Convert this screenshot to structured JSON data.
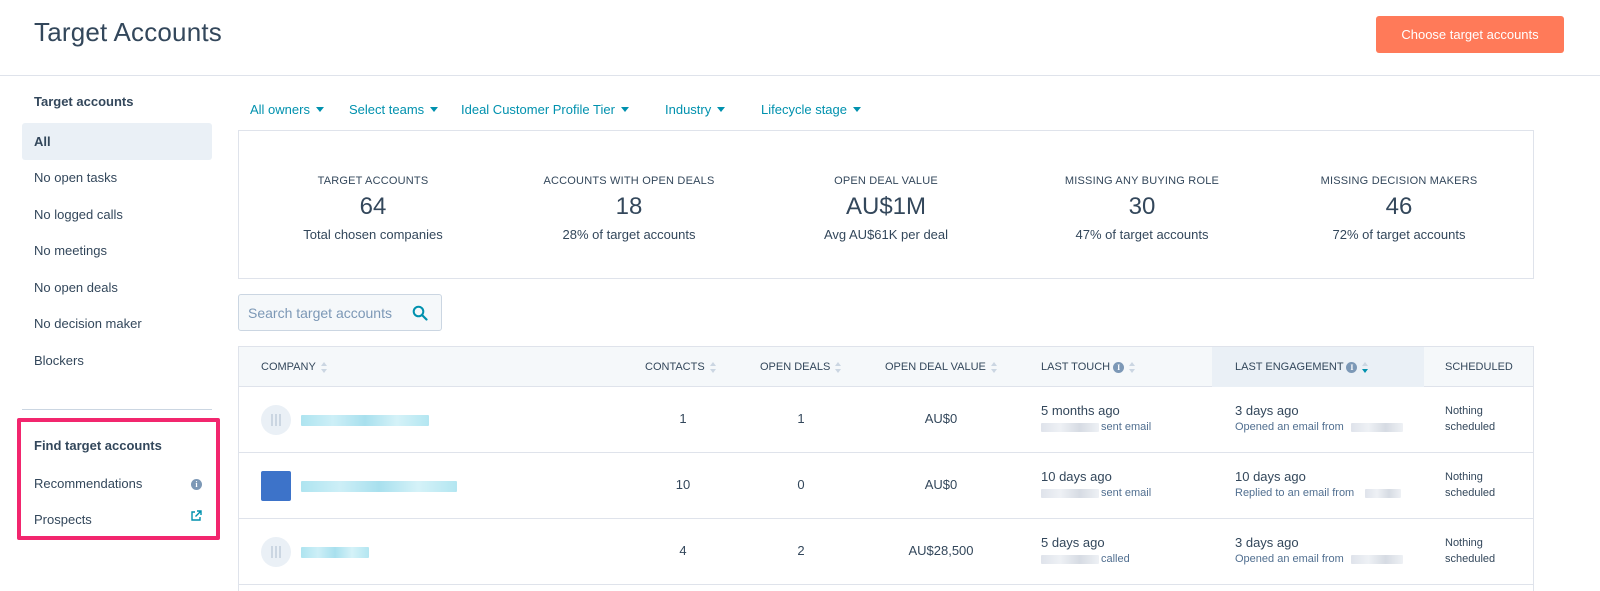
{
  "header": {
    "title": "Target Accounts",
    "cta_label": "Choose target accounts"
  },
  "sidebar": {
    "heading": "Target accounts",
    "items": [
      {
        "label": "All",
        "active": true
      },
      {
        "label": "No open tasks"
      },
      {
        "label": "No logged calls"
      },
      {
        "label": "No meetings"
      },
      {
        "label": "No open deals"
      },
      {
        "label": "No decision maker"
      },
      {
        "label": "Blockers"
      }
    ],
    "find": {
      "heading": "Find target accounts",
      "items": [
        {
          "label": "Recommendations",
          "icon": "info-icon"
        },
        {
          "label": "Prospects",
          "icon": "external-link-icon"
        }
      ]
    }
  },
  "filters": [
    "All owners",
    "Select teams",
    "Ideal Customer Profile Tier",
    "Industry",
    "Lifecycle stage"
  ],
  "stats": [
    {
      "label": "Target accounts",
      "value": "64",
      "sub": "Total chosen companies"
    },
    {
      "label": "Accounts with open deals",
      "value": "18",
      "sub": "28% of target accounts"
    },
    {
      "label": "Open deal value",
      "value": "AU$1M",
      "sub": "Avg AU$61K per deal"
    },
    {
      "label": "Missing any buying role",
      "value": "30",
      "sub": "47% of target accounts"
    },
    {
      "label": "Missing decision makers",
      "value": "46",
      "sub": "72% of target accounts"
    }
  ],
  "search": {
    "placeholder": "Search target accounts"
  },
  "table": {
    "columns": [
      "Company",
      "Contacts",
      "Open deals",
      "Open deal value",
      "Last touch",
      "Last engagement",
      "Scheduled"
    ],
    "sorted_column": "Last engagement",
    "rows": [
      {
        "contacts": "1",
        "open_deals": "1",
        "open_deal_value": "AU$0",
        "last_touch": "5 months ago",
        "last_touch_sub": "sent email",
        "last_engagement": "3 days ago",
        "last_engagement_sub": "Opened an email from",
        "scheduled": "Nothing scheduled"
      },
      {
        "contacts": "10",
        "open_deals": "0",
        "open_deal_value": "AU$0",
        "last_touch": "10 days ago",
        "last_touch_sub": "sent email",
        "last_engagement": "10 days ago",
        "last_engagement_sub": "Replied to an email from",
        "scheduled": "Nothing scheduled"
      },
      {
        "contacts": "4",
        "open_deals": "2",
        "open_deal_value": "AU$28,500",
        "last_touch": "5 days ago",
        "last_touch_sub": "called",
        "last_engagement": "3 days ago",
        "last_engagement_sub": "Opened an email from",
        "scheduled": "Nothing scheduled"
      }
    ]
  },
  "colors": {
    "accent": "#ff7a59",
    "link": "#0091ae",
    "text": "#33475b",
    "highlight_border": "#f2266e"
  }
}
